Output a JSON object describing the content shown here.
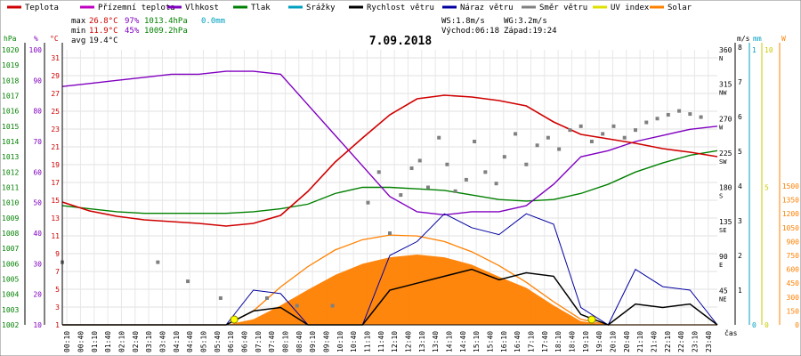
{
  "chart_data": {
    "type": "line",
    "title": "7.09.2018",
    "legend": {
      "placement": "top",
      "items": [
        {
          "name": "Teplota",
          "color": "#d00000",
          "style": "line"
        },
        {
          "name": "Přízemní teplota",
          "color": "#c000c0",
          "style": "line"
        },
        {
          "name": "Vlhkost",
          "color": "#8000c0",
          "style": "line"
        },
        {
          "name": "Tlak",
          "color": "#008000",
          "style": "line"
        },
        {
          "name": "Srážky",
          "color": "#00a0c0",
          "style": "line"
        },
        {
          "name": "Rychlost větru",
          "color": "#000000",
          "style": "line"
        },
        {
          "name": "Náraz větru",
          "color": "#0000a0",
          "style": "line"
        },
        {
          "name": "Směr větru",
          "color": "#808080",
          "style": "line"
        },
        {
          "name": "UV index",
          "color": "#e0e000",
          "style": "line"
        },
        {
          "name": "Solar",
          "color": "#ff8000",
          "style": "line"
        }
      ]
    },
    "stats": {
      "max": {
        "label": "max",
        "temp": "26.8°C",
        "hum": "97%",
        "press": "1013.4hPa",
        "rain": "0.0mm"
      },
      "min": {
        "label": "min",
        "temp": "11.9°C",
        "hum": "45%",
        "press": "1009.2hPa"
      },
      "avg": {
        "label": "avg",
        "temp": "19.4°C"
      }
    },
    "info": {
      "ws": "WS:1.8m/s",
      "wg": "WG:3.2m/s",
      "sunrise": "Východ:06:18",
      "sunset": "Západ:19:24"
    },
    "axes": {
      "unit_hpa": "hPa",
      "unit_pct": "%",
      "unit_c": "°C",
      "unit_ms": "m/s",
      "unit_mm": "mm",
      "unit_w": "W",
      "unit_cas": "čas",
      "hpa_ticks": [
        "1002",
        "1003",
        "1004",
        "1005",
        "1006",
        "1007",
        "1008",
        "1009",
        "1010",
        "1011",
        "1012",
        "1013",
        "1014",
        "1015",
        "1016",
        "1017",
        "1018",
        "1019",
        "1020"
      ],
      "pct_ticks": [
        "10",
        "20",
        "30",
        "40",
        "50",
        "60",
        "70",
        "80",
        "90",
        "100"
      ],
      "c_ticks": [
        "1",
        "3",
        "5",
        "7",
        "9",
        "11",
        "13",
        "15",
        "17",
        "19",
        "21",
        "23",
        "25",
        "27",
        "29",
        "31"
      ],
      "dir_ticks": [
        {
          "deg": "45",
          "dir": "NE"
        },
        {
          "deg": "90",
          "dir": "E"
        },
        {
          "deg": "135",
          "dir": "SE"
        },
        {
          "deg": "180",
          "dir": "S"
        },
        {
          "deg": "225",
          "dir": "SW"
        },
        {
          "deg": "270",
          "dir": "W"
        },
        {
          "deg": "315",
          "dir": "NW"
        },
        {
          "deg": "360",
          "dir": "N"
        }
      ],
      "ms_ticks": [
        "1",
        "2",
        "3",
        "4",
        "5",
        "6",
        "7",
        "8"
      ],
      "mm_ticks": [
        "0",
        "1"
      ],
      "uv_ticks": [
        "0",
        "5",
        "10"
      ],
      "w_ticks": [
        "0",
        "150",
        "300",
        "450",
        "600",
        "750",
        "900",
        "1050",
        "1200",
        "1350",
        "1500"
      ],
      "time_ticks": [
        "00:10",
        "00:40",
        "01:10",
        "01:40",
        "02:10",
        "02:40",
        "03:10",
        "03:40",
        "04:10",
        "04:40",
        "05:10",
        "05:40",
        "06:10",
        "06:40",
        "07:10",
        "07:40",
        "08:10",
        "08:40",
        "09:10",
        "09:40",
        "10:10",
        "10:40",
        "11:10",
        "11:40",
        "12:10",
        "12:40",
        "13:10",
        "13:40",
        "14:10",
        "14:40",
        "15:10",
        "15:40",
        "16:10",
        "16:40",
        "17:10",
        "17:40",
        "18:10",
        "18:40",
        "19:10",
        "19:40",
        "20:10",
        "20:40",
        "21:10",
        "21:40",
        "22:10",
        "22:40",
        "23:10",
        "23:40"
      ]
    },
    "x_hours": [
      0,
      1,
      2,
      3,
      4,
      5,
      6,
      7,
      8,
      9,
      10,
      11,
      12,
      13,
      14,
      15,
      16,
      17,
      18,
      19,
      20,
      21,
      22,
      23,
      24
    ],
    "series": [
      {
        "name": "Teplota",
        "unit": "°C",
        "color": "#d00000",
        "values": [
          14.8,
          13.8,
          13.2,
          12.8,
          12.6,
          12.4,
          12.1,
          12.4,
          13.3,
          16.0,
          19.3,
          22.0,
          24.6,
          26.4,
          26.8,
          26.6,
          26.2,
          25.6,
          23.8,
          22.4,
          21.9,
          21.4,
          20.8,
          20.4,
          19.9
        ]
      },
      {
        "name": "Vlhkost",
        "unit": "%",
        "color": "#8000c0",
        "values": [
          88,
          89,
          90,
          91,
          92,
          92,
          93,
          93,
          92,
          82,
          72,
          62,
          52,
          47,
          46,
          47,
          47,
          49,
          56,
          65,
          67,
          70,
          72,
          74,
          75
        ]
      },
      {
        "name": "Tlak",
        "unit": "hPa",
        "color": "#008000",
        "values": [
          1009.8,
          1009.6,
          1009.4,
          1009.3,
          1009.3,
          1009.3,
          1009.3,
          1009.4,
          1009.6,
          1009.9,
          1010.6,
          1011.0,
          1011.0,
          1010.9,
          1010.8,
          1010.5,
          1010.2,
          1010.1,
          1010.2,
          1010.6,
          1011.2,
          1012.0,
          1012.6,
          1013.1,
          1013.4
        ]
      },
      {
        "name": "Rychlost větru",
        "unit": "m/s",
        "color": "#000000",
        "values": [
          0,
          0,
          0,
          0,
          0,
          0,
          0,
          0.4,
          0.5,
          0,
          0,
          0,
          1.0,
          1.2,
          1.4,
          1.6,
          1.3,
          1.5,
          1.4,
          0.3,
          0,
          0.6,
          0.5,
          0.6,
          0
        ]
      },
      {
        "name": "Náraz větru",
        "unit": "m/s",
        "color": "#0000a0",
        "values": [
          0,
          0,
          0,
          0,
          0,
          0,
          0,
          1.0,
          0.9,
          0,
          0,
          0,
          2.0,
          2.4,
          3.2,
          2.8,
          2.6,
          3.2,
          2.9,
          0.5,
          0,
          1.6,
          1.1,
          1.0,
          0
        ]
      },
      {
        "name": "Solar",
        "unit": "W",
        "color": "#ff8000",
        "values": [
          0,
          0,
          0,
          0,
          0,
          0,
          0,
          60,
          210,
          380,
          540,
          660,
          730,
          760,
          730,
          650,
          520,
          400,
          210,
          40,
          0,
          0,
          0,
          0,
          0
        ]
      },
      {
        "name": "Solar max",
        "unit": "W",
        "color": "#ff8000",
        "values": [
          0,
          0,
          0,
          0,
          0,
          0,
          0,
          150,
          410,
          630,
          810,
          920,
          970,
          960,
          900,
          790,
          640,
          460,
          250,
          60,
          0,
          0,
          0,
          0,
          0
        ]
      }
    ],
    "wind_dir": {
      "unit": "deg",
      "points": [
        [
          0.0,
          82
        ],
        [
          3.5,
          82
        ],
        [
          4.6,
          57
        ],
        [
          5.8,
          35
        ],
        [
          7.5,
          35
        ],
        [
          8.6,
          25
        ],
        [
          9.9,
          25
        ],
        [
          11.2,
          160
        ],
        [
          11.6,
          200
        ],
        [
          12.0,
          120
        ],
        [
          12.4,
          170
        ],
        [
          12.8,
          205
        ],
        [
          13.1,
          215
        ],
        [
          13.4,
          180
        ],
        [
          13.8,
          245
        ],
        [
          14.1,
          210
        ],
        [
          14.4,
          175
        ],
        [
          14.8,
          190
        ],
        [
          15.1,
          240
        ],
        [
          15.5,
          200
        ],
        [
          15.9,
          185
        ],
        [
          16.2,
          220
        ],
        [
          16.6,
          250
        ],
        [
          17.0,
          210
        ],
        [
          17.4,
          235
        ],
        [
          17.8,
          245
        ],
        [
          18.2,
          230
        ],
        [
          18.6,
          255
        ],
        [
          19.0,
          260
        ],
        [
          19.4,
          240
        ],
        [
          19.8,
          250
        ],
        [
          20.2,
          260
        ],
        [
          20.6,
          245
        ],
        [
          21.0,
          255
        ],
        [
          21.4,
          265
        ],
        [
          21.8,
          270
        ],
        [
          22.2,
          275
        ],
        [
          22.6,
          280
        ],
        [
          23.0,
          276
        ],
        [
          23.4,
          272
        ]
      ]
    }
  }
}
